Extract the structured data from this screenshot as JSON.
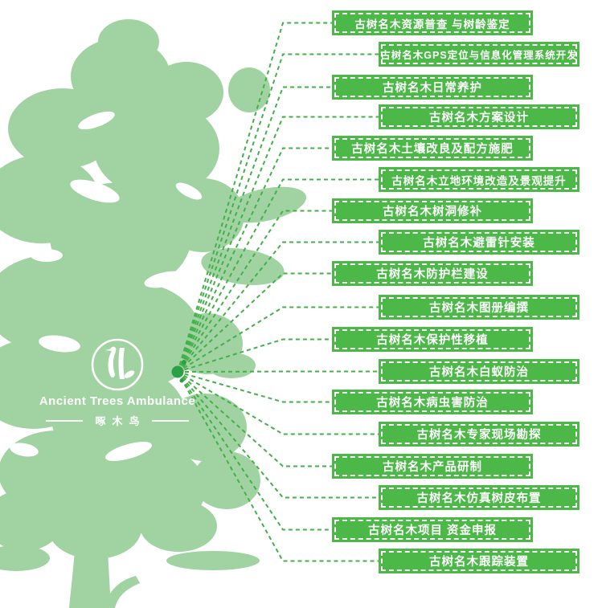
{
  "logo": {
    "title": "Ancient Trees Ambulance",
    "subtitle": "啄木鸟",
    "icon": "woodpecker-in-circle-icon"
  },
  "services": [
    "古树名木资源普查 与树龄鉴定",
    "古树名木GPS定位与信息化管理系统开发",
    "古树名木日常养护",
    "古树名木方案设计",
    "古树名木土壤改良及配方施肥",
    "古树名木立地环境改造及景观提升",
    "古树名木树洞修补",
    "古树名木避雷针安装",
    "古树名木防护栏建设",
    "古树名木图册编撰",
    "古树名木保护性移植",
    "古树名木白蚁防治",
    "古树名木病虫害防治",
    "古树名木专家现场勘探",
    "古树名木产品研制",
    "古树名木仿真树皮布置",
    "古树名木项目 资金申报",
    "古树名木跟踪装置"
  ],
  "colors": {
    "tree_green": "#a0d3a1",
    "box_green": "#4cb848",
    "line_green": "#44b04a",
    "hub_dot_green": "#2ba045",
    "text_white": "#ffffff"
  }
}
